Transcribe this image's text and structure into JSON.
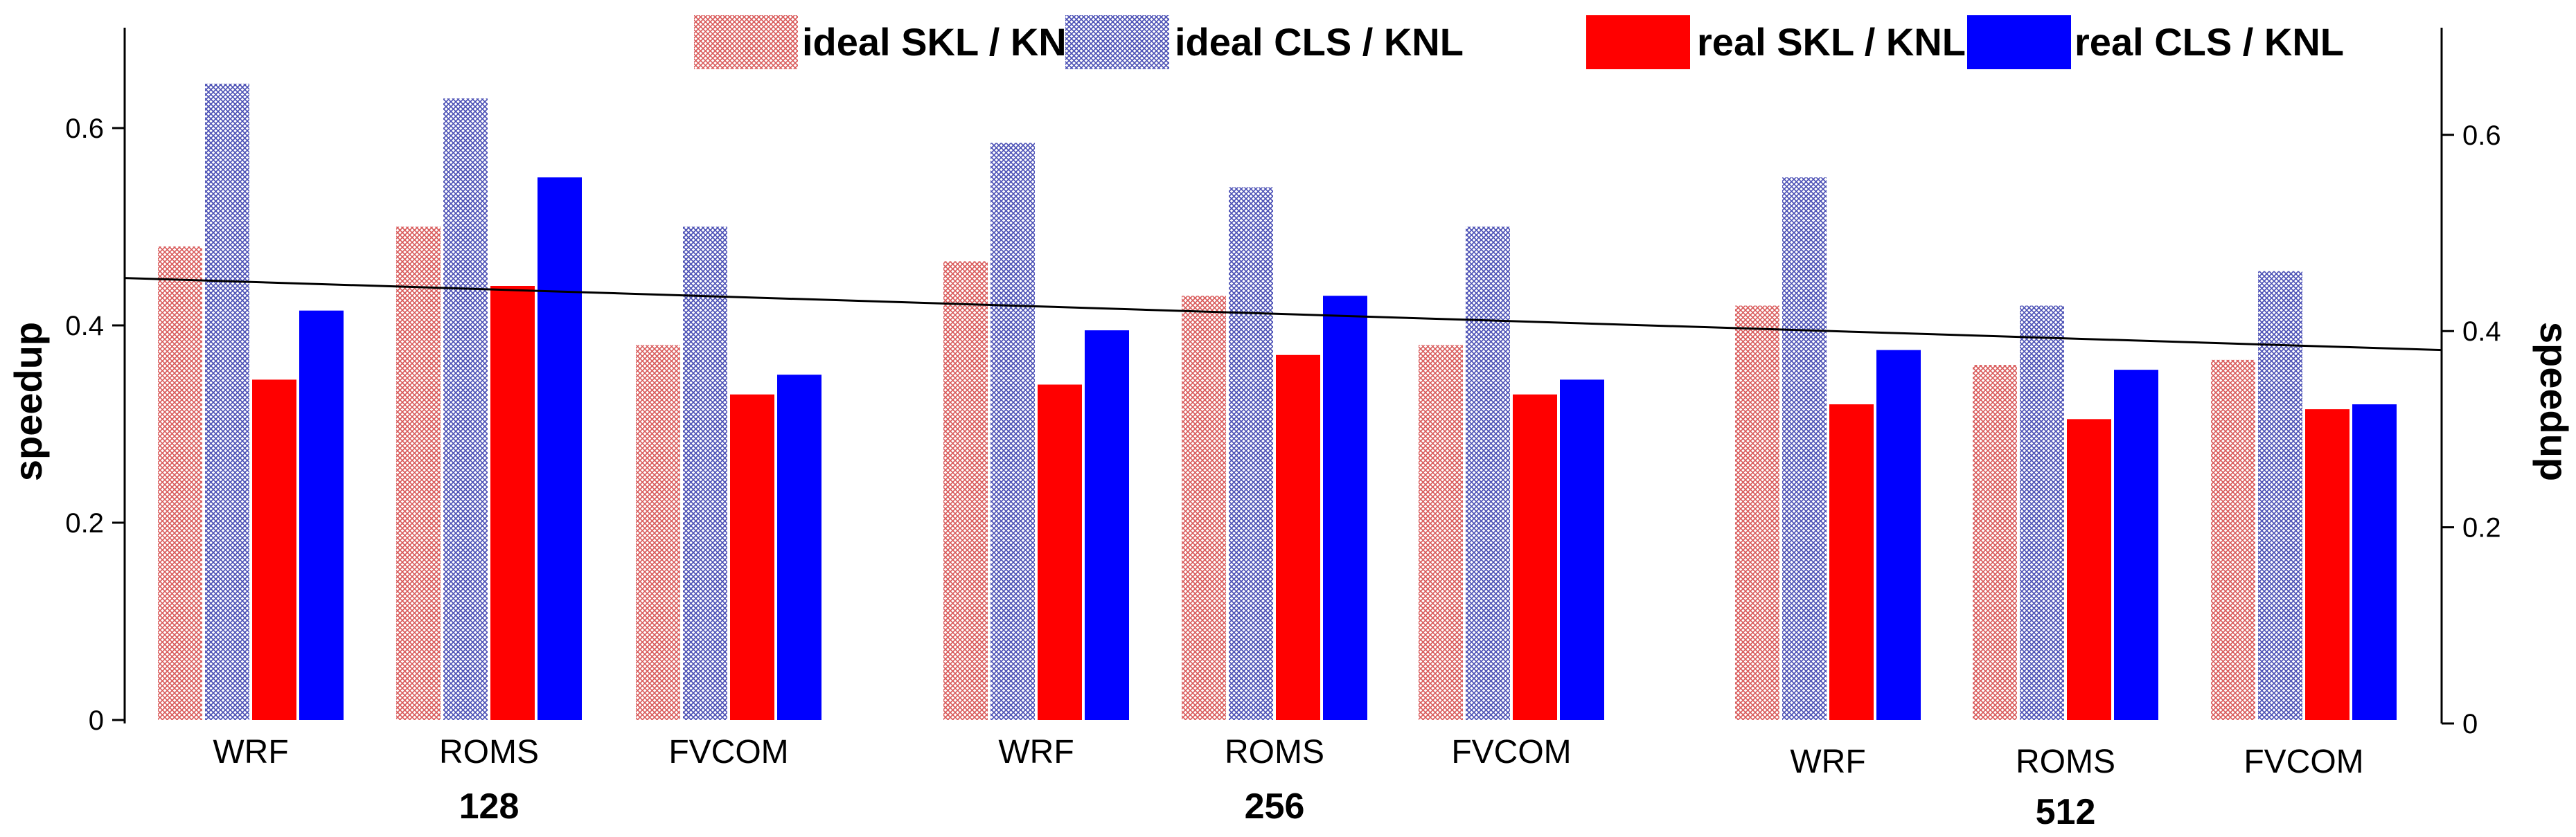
{
  "chart_data": {
    "type": "bar",
    "xlabel": "",
    "ylabel": "speedup",
    "ylabel_right": "speedup",
    "ylim": [
      0,
      0.7
    ],
    "y_ticks": [
      0,
      0.2,
      0.4,
      0.6
    ],
    "y_tick_labels": [
      "0",
      "0.2",
      "0.4",
      "0.6"
    ],
    "right_y_ticks": [
      0,
      0.2,
      0.4,
      0.6
    ],
    "right_y_tick_labels": [
      "0",
      "0.2",
      "0.4",
      "0.6"
    ],
    "groups": [
      "128",
      "256",
      "512"
    ],
    "apps": [
      "WRF",
      "ROMS",
      "FVCOM"
    ],
    "categories": [
      "WRF",
      "ROMS",
      "FVCOM",
      "WRF",
      "ROMS",
      "FVCOM",
      "WRF",
      "ROMS",
      "FVCOM"
    ],
    "series": [
      {
        "name": "ideal SKL / KNL",
        "color": "#e26b6b",
        "pattern": "hatched",
        "values": [
          0.48,
          0.5,
          0.38,
          0.465,
          0.43,
          0.38,
          0.42,
          0.36,
          0.365
        ]
      },
      {
        "name": "ideal CLS / KNL",
        "color": "#5a5fc0",
        "pattern": "hatched",
        "values": [
          0.645,
          0.63,
          0.5,
          0.585,
          0.54,
          0.5,
          0.55,
          0.42,
          0.455
        ]
      },
      {
        "name": "real SKL / KNL",
        "color": "#ff0000",
        "pattern": "solid",
        "values": [
          0.345,
          0.44,
          0.33,
          0.34,
          0.37,
          0.33,
          0.32,
          0.305,
          0.315
        ]
      },
      {
        "name": "real CLS / KNL",
        "color": "#0000ff",
        "pattern": "solid",
        "values": [
          0.415,
          0.55,
          0.35,
          0.395,
          0.43,
          0.345,
          0.375,
          0.355,
          0.32
        ]
      }
    ],
    "trend_line": {
      "start": 0.448,
      "end": 0.375
    },
    "legend": [
      "ideal SKL / KNL",
      "ideal CLS / KNL",
      "real SKL / KNL",
      "real CLS / KNL"
    ],
    "legend_position": "top"
  }
}
